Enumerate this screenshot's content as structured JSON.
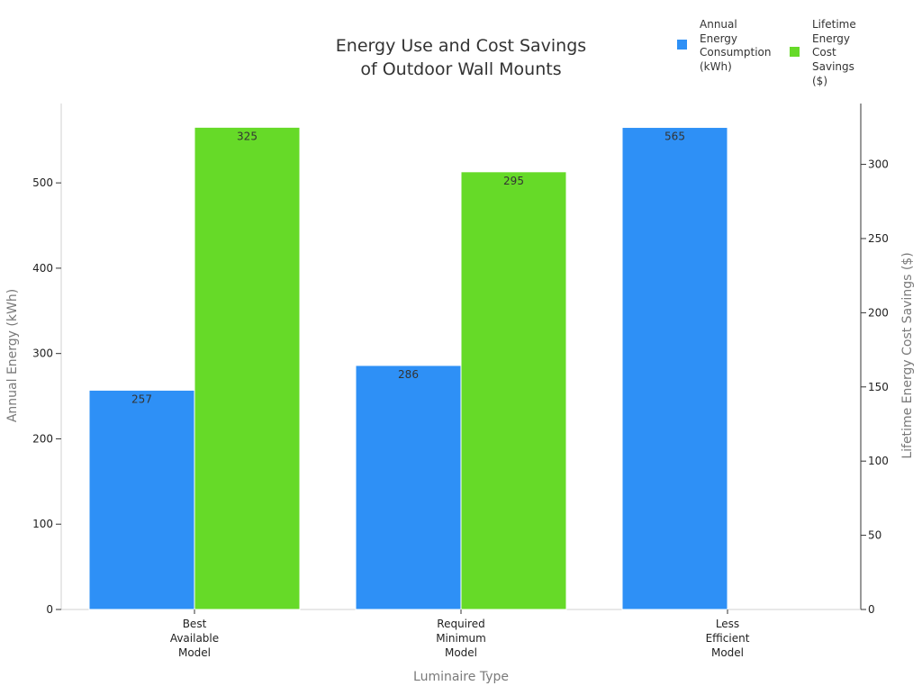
{
  "chart_data": {
    "type": "bar",
    "title": [
      "Energy Use and Cost Savings",
      "of Outdoor Wall Mounts"
    ],
    "categories": [
      [
        "Best",
        "Available",
        "Model"
      ],
      [
        "Required",
        "Minimum",
        "Model"
      ],
      [
        "Less",
        "Efficient",
        "Model"
      ]
    ],
    "xlabel": "Luminaire Type",
    "ylabel": "Annual Energy (kWh)",
    "y2label": "Lifetime Energy Cost Savings ($)",
    "ylim": [
      0,
      593
    ],
    "y2lim": [
      0,
      341
    ],
    "yticks": [
      0,
      100,
      200,
      300,
      400,
      500
    ],
    "y2ticks": [
      0,
      50,
      100,
      150,
      200,
      250,
      300
    ],
    "legend_position": "top-right",
    "grid": false,
    "series": [
      {
        "name": [
          "Annual",
          "Energy",
          "Consumption",
          "(kWh)"
        ],
        "axis": "left",
        "color": "#2e90f6",
        "values": [
          257,
          286,
          565
        ],
        "labels": [
          "257",
          "286",
          "565"
        ]
      },
      {
        "name": [
          "Lifetime",
          "Energy",
          "Cost",
          "Savings",
          "($)"
        ],
        "axis": "right",
        "color": "#66da28",
        "values": [
          325,
          295,
          null
        ],
        "labels": [
          "325",
          "295",
          ""
        ]
      }
    ]
  }
}
